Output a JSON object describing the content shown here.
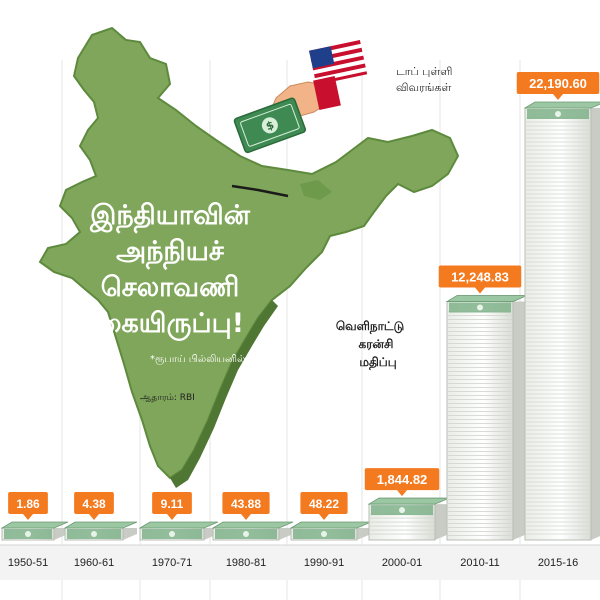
{
  "title_lines": [
    "இந்தியாவின்",
    "அந்நியச்",
    "செலாவணி",
    "கையிருப்பு!"
  ],
  "unit_note": "*ரூபாய் பில்லியனில்...",
  "source_note": "ஆதாரம்: RBI",
  "corner_label_lines": [
    "டாப் புள்ளி",
    "விவரங்கள்"
  ],
  "series_label_lines": [
    "வெளிநாட்டு",
    "கரன்சி",
    "மதிப்பு"
  ],
  "colors": {
    "accent": "#f47a20",
    "map": "#7fa65a",
    "map_dark": "#5e8a3e",
    "money": "#7fb28a"
  },
  "icons": [
    "us-flag-icon",
    "hand-icon",
    "banknote-icon"
  ],
  "chart_data": {
    "type": "bar",
    "categories": [
      "1950-51",
      "1960-61",
      "1970-71",
      "1980-81",
      "1990-91",
      "2000-01",
      "2010-11",
      "2015-16"
    ],
    "values": [
      1.86,
      4.38,
      9.11,
      43.88,
      48.22,
      1844.82,
      12248.83,
      22190.6
    ],
    "value_labels": [
      "1.86",
      "4.38",
      "9.11",
      "43.88",
      "48.22",
      "1,844.82",
      "12,248.83",
      "22,190.60"
    ],
    "ylabel": "",
    "legend": "none"
  }
}
